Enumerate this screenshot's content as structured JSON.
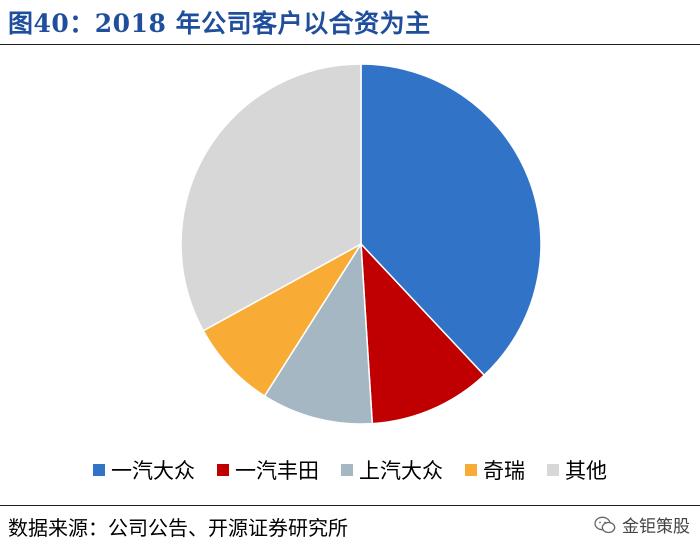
{
  "title": "图40：2018 年公司客户以合资为主",
  "source_note": "数据来源：公司公告、开源证券研究所",
  "watermark": "金钜策股",
  "chart_data": {
    "type": "pie",
    "title": "",
    "start_angle_deg": 0,
    "direction": "clockwise",
    "legend_position": "bottom",
    "slices": [
      {
        "label": "一汽大众",
        "value": 38,
        "color": "#3173c6"
      },
      {
        "label": "一汽丰田",
        "value": 11,
        "color": "#c00000"
      },
      {
        "label": "上汽大众",
        "value": 10,
        "color": "#a5b7c3"
      },
      {
        "label": "奇瑞",
        "value": 8,
        "color": "#f8ab35"
      },
      {
        "label": "其他",
        "value": 33,
        "color": "#d7d7d7"
      }
    ]
  }
}
